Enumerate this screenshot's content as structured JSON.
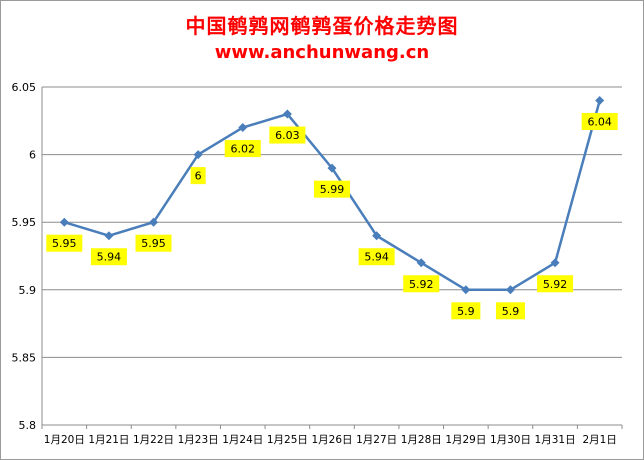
{
  "title": "中国鹌鹑网鹌鹑蛋价格走势图",
  "subtitle": "www.anchunwang.cn",
  "colors": {
    "line": "#4a7ebb",
    "grid": "#8c8c8c",
    "label_bg": "#ffff00",
    "title": "#ff0000"
  },
  "chart_data": {
    "type": "line",
    "title": "中国鹌鹑网鹌鹑蛋价格走势图",
    "subtitle": "www.anchunwang.cn",
    "xlabel": "",
    "ylabel": "",
    "categories": [
      "1月20日",
      "1月21日",
      "1月22日",
      "1月23日",
      "1月24日",
      "1月25日",
      "1月26日",
      "1月27日",
      "1月28日",
      "1月29日",
      "1月30日",
      "1月31日",
      "2月1日"
    ],
    "series": [
      {
        "values": [
          5.95,
          5.94,
          5.95,
          6.0,
          6.02,
          6.03,
          5.99,
          5.94,
          5.92,
          5.9,
          5.9,
          5.92,
          6.04
        ],
        "data_labels": [
          "5.95",
          "5.94",
          "5.95",
          "6",
          "6.02",
          "6.03",
          "5.99",
          "5.94",
          "5.92",
          "5.9",
          "5.9",
          "5.92",
          "6.04"
        ]
      }
    ],
    "ylim": [
      5.8,
      6.05
    ],
    "yticks": [
      5.8,
      5.85,
      5.9,
      5.95,
      6.0,
      6.05
    ],
    "ytick_labels": [
      "5.8",
      "5.85",
      "5.9",
      "5.95",
      "6",
      "6.05"
    ],
    "grid": true,
    "legend": "none",
    "marker": "diamond"
  }
}
